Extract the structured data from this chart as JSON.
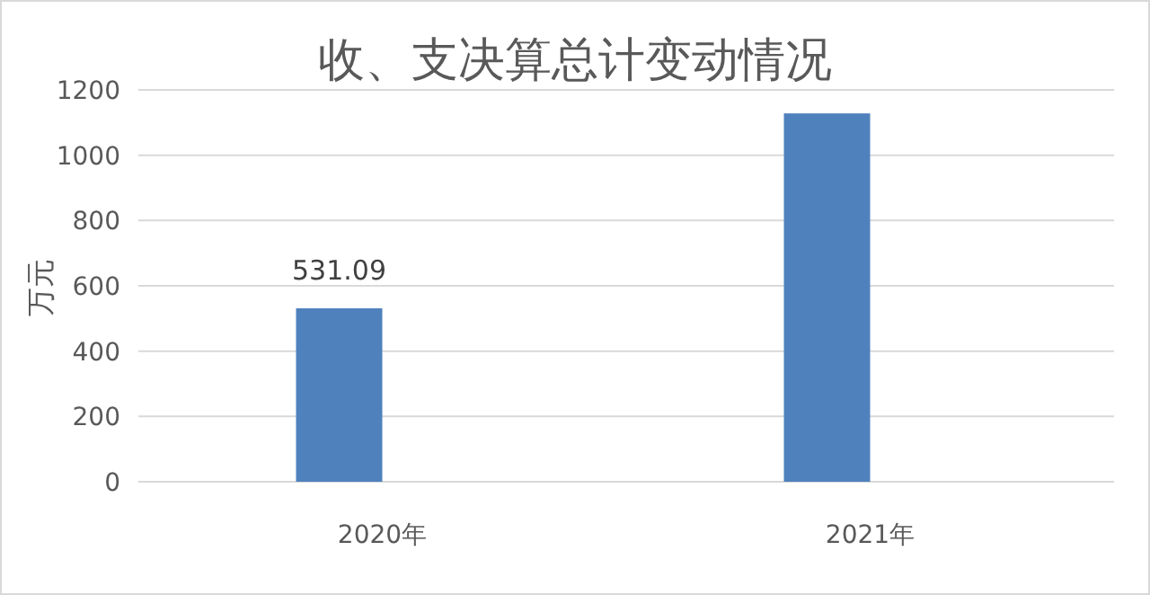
{
  "chart_data": {
    "type": "bar",
    "title": "收、支决算总计变动情况",
    "ylabel": "万元",
    "categories": [
      "2020年",
      "2021年"
    ],
    "series": [
      {
        "color": "#4f81bd",
        "values": [
          531.09,
          1128
        ]
      }
    ],
    "value_labels": [
      "531.09",
      null
    ],
    "ylim": [
      0,
      1200
    ],
    "yticks": [
      0,
      200,
      400,
      600,
      800,
      1000,
      1200
    ],
    "grid": "y"
  }
}
